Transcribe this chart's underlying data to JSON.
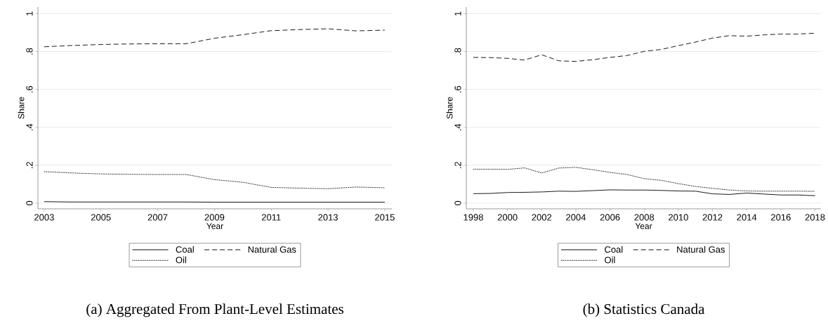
{
  "chart_data": [
    {
      "type": "line",
      "x": [
        2003,
        2004,
        2005,
        2006,
        2007,
        2008,
        2009,
        2010,
        2011,
        2012,
        2013,
        2014,
        2015
      ],
      "series": [
        {
          "name": "Coal",
          "color": "#000000",
          "line_style": "solid",
          "values": [
            0.008,
            0.006,
            0.006,
            0.006,
            0.006,
            0.006,
            0.005,
            0.005,
            0.005,
            0.005,
            0.005,
            0.005,
            0.005
          ]
        },
        {
          "name": "Natural Gas",
          "color": "#000000",
          "line_style": "dashed",
          "values": [
            0.825,
            0.832,
            0.837,
            0.84,
            0.841,
            0.841,
            0.87,
            0.889,
            0.91,
            0.916,
            0.92,
            0.909,
            0.913
          ]
        },
        {
          "name": "Oil",
          "color": "#000000",
          "line_style": "dotted",
          "values": [
            0.166,
            0.159,
            0.154,
            0.152,
            0.151,
            0.151,
            0.124,
            0.11,
            0.083,
            0.079,
            0.076,
            0.085,
            0.081
          ]
        }
      ],
      "xlim": [
        2002.78,
        2015.25
      ],
      "xticks": [
        2003,
        2005,
        2007,
        2009,
        2011,
        2013,
        2015
      ],
      "ylim": [
        -0.03,
        1.035
      ],
      "yticks": [
        {
          "value": 0,
          "label": "0"
        },
        {
          "value": 0.2,
          "label": ".2"
        },
        {
          "value": 0.4,
          "label": ".4"
        },
        {
          "value": 0.6,
          "label": ".6"
        },
        {
          "value": 0.8,
          "label": ".8"
        },
        {
          "value": 1,
          "label": "1"
        }
      ],
      "xlabel": "Year",
      "ylabel": "Share",
      "grid": "y",
      "legend": "bottom",
      "annotations": [
        "(a) Aggregated From Plant-Level Estimates"
      ]
    },
    {
      "type": "line",
      "x": [
        1998,
        1999,
        2000,
        2001,
        2002,
        2003,
        2004,
        2005,
        2006,
        2007,
        2008,
        2009,
        2010,
        2011,
        2012,
        2013,
        2014,
        2015,
        2016,
        2017,
        2018
      ],
      "series": [
        {
          "name": "Coal",
          "color": "#000000",
          "line_style": "solid",
          "values": [
            0.05,
            0.051,
            0.056,
            0.057,
            0.059,
            0.063,
            0.062,
            0.066,
            0.07,
            0.069,
            0.069,
            0.067,
            0.064,
            0.063,
            0.049,
            0.046,
            0.053,
            0.048,
            0.043,
            0.043,
            0.039
          ]
        },
        {
          "name": "Natural Gas",
          "color": "#000000",
          "line_style": "dashed",
          "values": [
            0.769,
            0.768,
            0.764,
            0.755,
            0.783,
            0.751,
            0.748,
            0.757,
            0.769,
            0.779,
            0.801,
            0.811,
            0.831,
            0.85,
            0.871,
            0.884,
            0.881,
            0.888,
            0.892,
            0.892,
            0.897
          ]
        },
        {
          "name": "Oil",
          "color": "#000000",
          "line_style": "dotted",
          "values": [
            0.179,
            0.179,
            0.178,
            0.186,
            0.159,
            0.185,
            0.189,
            0.176,
            0.162,
            0.151,
            0.129,
            0.12,
            0.103,
            0.088,
            0.078,
            0.069,
            0.064,
            0.063,
            0.063,
            0.063,
            0.062
          ]
        }
      ],
      "xlim": [
        1997.59,
        2018.35
      ],
      "xticks": [
        1998,
        2000,
        2002,
        2004,
        2006,
        2008,
        2010,
        2012,
        2014,
        2016,
        2018
      ],
      "ylim": [
        -0.03,
        1.035
      ],
      "yticks": [
        {
          "value": 0,
          "label": "0"
        },
        {
          "value": 0.2,
          "label": ".2"
        },
        {
          "value": 0.4,
          "label": ".4"
        },
        {
          "value": 0.6,
          "label": ".6"
        },
        {
          "value": 0.8,
          "label": ".8"
        },
        {
          "value": 1,
          "label": "1"
        }
      ],
      "xlabel": "Year",
      "ylabel": "Share",
      "grid": "y",
      "legend": "bottom",
      "annotations": [
        "(b) Statistics Canada"
      ]
    }
  ]
}
